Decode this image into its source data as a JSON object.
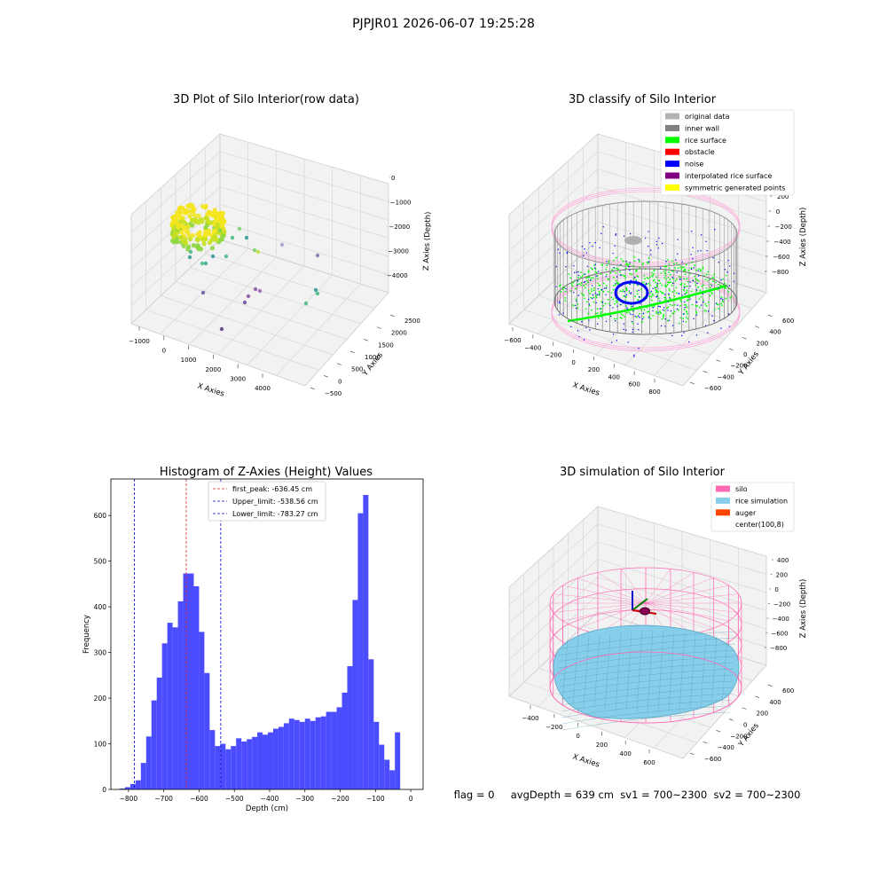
{
  "suptitle": "PJPJR01 2026-06-07 19:25:28",
  "status_line": "flag = 0     avgDepth = 639 cm  sv1 = 700~2300  sv2 = 700~2300",
  "colors": {
    "histogram_bar": "#4c4cff",
    "peak_line": "#d62728",
    "limit_line": "#0000cc",
    "silo_pink": "#ff69b4",
    "rice_blue": "#87ceeb",
    "auger": "#ff4500",
    "pane": "#f2f2f2",
    "grid": "#d8d8d8"
  },
  "chart_data": [
    {
      "type": "scatter3d",
      "title": "3D Plot of Silo Interior(row data)",
      "xlabel": "X Axies",
      "ylabel": "Y Axies",
      "zlabel": "Z Axies (Depth)",
      "x_ticks": [
        "−1000",
        "0",
        "1000",
        "2000",
        "3000",
        "4000"
      ],
      "y_ticks": [
        "−500",
        "0",
        "500",
        "1000",
        "1500",
        "2000",
        "2500"
      ],
      "z_ticks": [
        "0",
        "−1000",
        "−2000",
        "−3000",
        "−4000"
      ],
      "xlim": [
        -1300,
        4500
      ],
      "ylim": [
        -700,
        2700
      ],
      "zlim": [
        -4500,
        200
      ]
    },
    {
      "type": "scatter3d",
      "title": "3D classify of Silo Interior",
      "xlabel": "X Axies",
      "ylabel": "Y Axies",
      "zlabel": "Z Axies (Depth)",
      "x_ticks": [
        "−600",
        "−400",
        "−200",
        "0",
        "200",
        "400",
        "600",
        "800"
      ],
      "y_ticks": [
        "−600",
        "−400",
        "−200",
        "0",
        "200",
        "400",
        "600"
      ],
      "z_ticks": [
        "200",
        "0",
        "−200",
        "−400",
        "−600",
        "−800"
      ],
      "legend_loc": "upper right",
      "legend": [
        {
          "label": "original data",
          "color": "#b3b3b3"
        },
        {
          "label": "inner wall",
          "color": "#808080"
        },
        {
          "label": "rice surface",
          "color": "#00ff00"
        },
        {
          "label": "obstacle",
          "color": "#ff0000"
        },
        {
          "label": "noise",
          "color": "#0000ff"
        },
        {
          "label": "interpolated rice surface",
          "color": "#800080"
        },
        {
          "label": "symmetric generated points",
          "color": "#ffff00"
        }
      ]
    },
    {
      "type": "bar",
      "title": "Histogram of Z-Axies (Height) Values",
      "xlabel": "Depth (cm)",
      "ylabel": "Frequency",
      "xlim": [
        -850,
        35
      ],
      "ylim": [
        0,
        680
      ],
      "x_ticks": [
        -800,
        -700,
        -600,
        -500,
        -400,
        -300,
        -200,
        -100,
        0
      ],
      "y_ticks": [
        0,
        100,
        200,
        300,
        400,
        500,
        600
      ],
      "bin_start": -825,
      "bin_width": 15,
      "values": [
        2,
        5,
        12,
        20,
        58,
        116,
        195,
        245,
        320,
        365,
        355,
        412,
        473,
        473,
        445,
        345,
        255,
        130,
        95,
        100,
        88,
        95,
        112,
        105,
        110,
        115,
        125,
        120,
        125,
        133,
        137,
        145,
        155,
        152,
        148,
        155,
        150,
        158,
        160,
        170,
        170,
        180,
        212,
        270,
        415,
        605,
        645,
        285,
        148,
        98,
        65,
        42,
        125
      ],
      "vlines": [
        {
          "x": -636.45,
          "label": "first_peak: -636.45 cm",
          "color": "#d62728"
        },
        {
          "x": -538.56,
          "label": "Upper_limit: -538.56 cm",
          "color": "#0000cc"
        },
        {
          "x": -783.27,
          "label": "Lower_limit: -783.27 cm",
          "color": "#0000cc"
        }
      ]
    },
    {
      "type": "surface3d",
      "title": "3D simulation of Silo Interior",
      "xlabel": "X Axies",
      "ylabel": "Y Axies",
      "zlabel": "Z Axies (Depth)",
      "x_ticks": [
        "−400",
        "−200",
        "0",
        "200",
        "400",
        "600"
      ],
      "y_ticks": [
        "−600",
        "−400",
        "−200",
        "0",
        "200",
        "400",
        "600"
      ],
      "z_ticks": [
        "400",
        "200",
        "0",
        "−200",
        "−400",
        "−600",
        "−800"
      ],
      "legend_loc": "upper right",
      "legend": [
        {
          "label": "silo",
          "color": "#ff69b4"
        },
        {
          "label": "rice simulation",
          "color": "#87ceeb"
        },
        {
          "label": "auger",
          "color": "#ff4500"
        },
        {
          "label": "center(100,8)",
          "color": "none"
        }
      ]
    }
  ]
}
